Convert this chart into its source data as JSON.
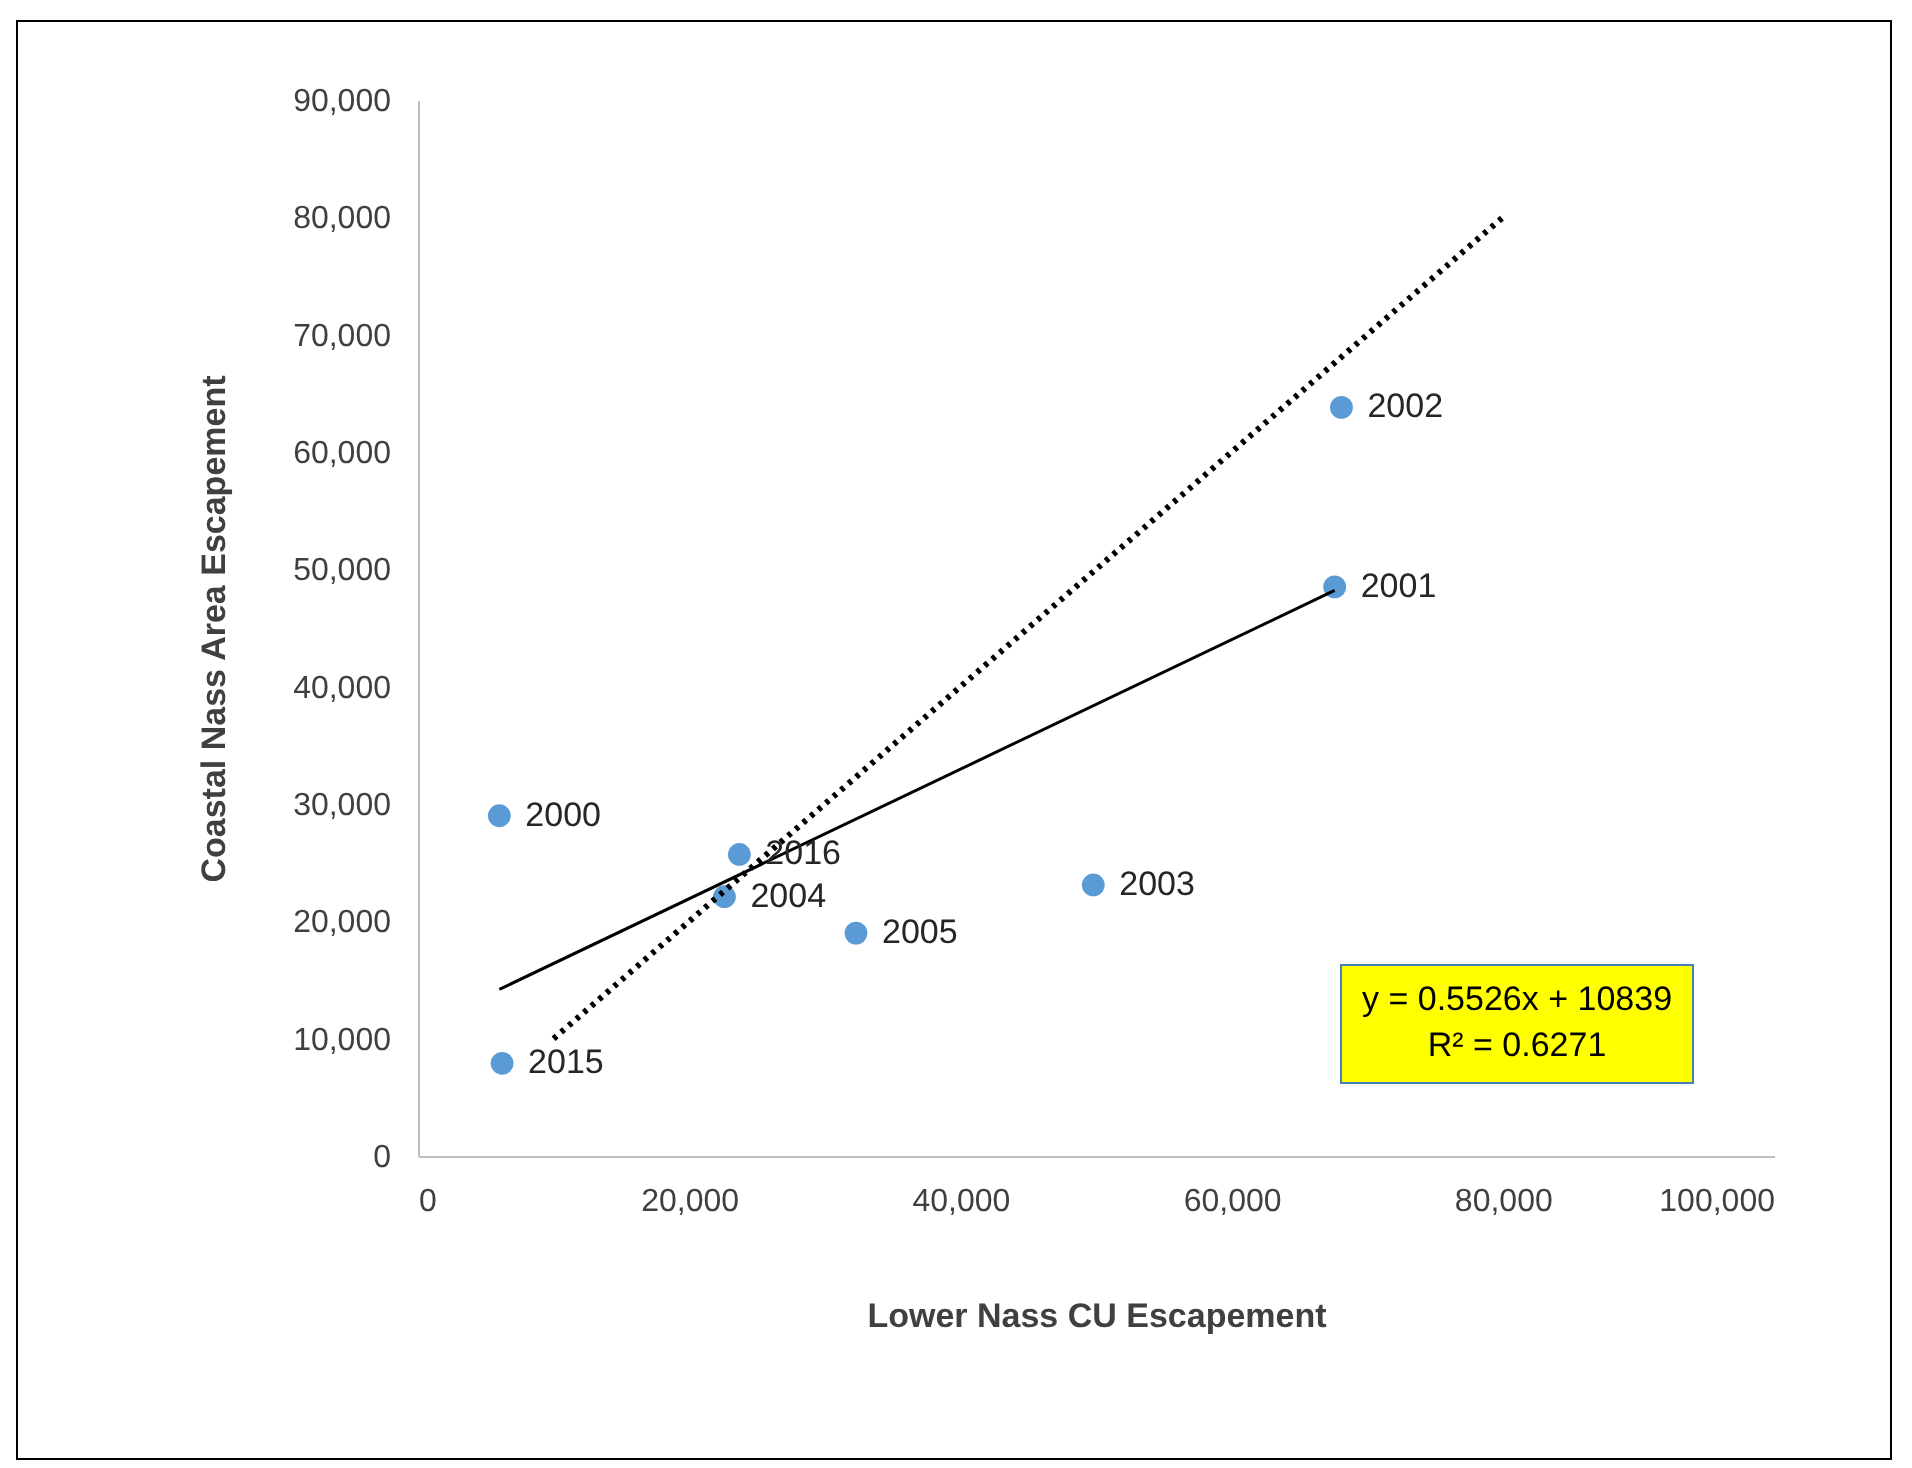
{
  "chart_data": {
    "type": "scatter",
    "xlabel": "Lower Nass CU Escapement",
    "ylabel": "Coastal Nass Area Escapement",
    "xlim": [
      0,
      100000
    ],
    "xticks": [
      {
        "value": 0,
        "label": "0"
      },
      {
        "value": 20000,
        "label": "20,000"
      },
      {
        "value": 40000,
        "label": "40,000"
      },
      {
        "value": 60000,
        "label": "60,000"
      },
      {
        "value": 80000,
        "label": "80,000"
      },
      {
        "value": 100000,
        "label": "100,000"
      }
    ],
    "ylim": [
      0,
      90000
    ],
    "yticks": [
      {
        "value": 0,
        "label": "0"
      },
      {
        "value": 10000,
        "label": "10,000"
      },
      {
        "value": 20000,
        "label": "20,000"
      },
      {
        "value": 30000,
        "label": "30,000"
      },
      {
        "value": 40000,
        "label": "40,000"
      },
      {
        "value": 50000,
        "label": "50,000"
      },
      {
        "value": 60000,
        "label": "60,000"
      },
      {
        "value": 70000,
        "label": "70,000"
      },
      {
        "value": 80000,
        "label": "80,000"
      },
      {
        "value": 90000,
        "label": "90,000"
      }
    ],
    "grid": false,
    "series": [
      {
        "marker": "circle",
        "color": "#5b9bd5",
        "x": [
          6000,
          67600,
          68100,
          49800,
          22600,
          32300,
          6200,
          23700
        ],
        "values": [
          29000,
          48500,
          63800,
          23100,
          22100,
          19000,
          7900,
          25700
        ]
      },
      {
        "type": "line",
        "marker": "none",
        "color": "#000000",
        "line_style": "solid",
        "x": [
          6000,
          67600
        ],
        "values": [
          14200,
          48200
        ]
      },
      {
        "type": "line",
        "marker": "none",
        "color": "#000000",
        "line_style": "dotted",
        "x": [
          10000,
          80000
        ],
        "values": [
          10000,
          80000
        ]
      }
    ],
    "annotations": [
      {
        "text": "2000",
        "x": 6000,
        "y": 29000
      },
      {
        "text": "2001",
        "x": 67600,
        "y": 48500
      },
      {
        "text": "2002",
        "x": 68100,
        "y": 63800
      },
      {
        "text": "2003",
        "x": 49800,
        "y": 23100
      },
      {
        "text": "2004",
        "x": 22600,
        "y": 22100
      },
      {
        "text": "2005",
        "x": 32300,
        "y": 19000
      },
      {
        "text": "2015",
        "x": 6200,
        "y": 7900
      },
      {
        "text": "2016",
        "x": 23700,
        "y": 25700
      },
      "y = 0.5526x + 10839\nR² = 0.6271"
    ]
  }
}
